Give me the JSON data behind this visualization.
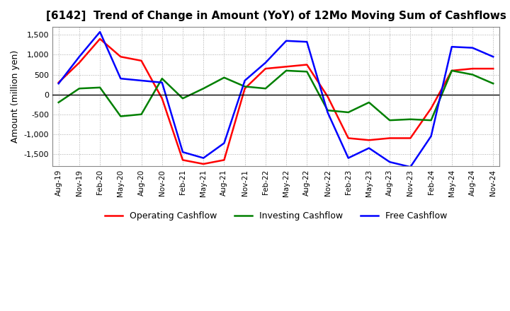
{
  "title": "[6142]  Trend of Change in Amount (YoY) of 12Mo Moving Sum of Cashflows",
  "ylabel": "Amount (million yen)",
  "background_color": "#ffffff",
  "plot_bg_color": "#ffffff",
  "grid_color": "#aaaaaa",
  "ylim": [
    -1800,
    1700
  ],
  "yticks": [
    -1500,
    -1000,
    -500,
    0,
    500,
    1000,
    1500
  ],
  "x_labels": [
    "Aug-19",
    "Nov-19",
    "Feb-20",
    "May-20",
    "Aug-20",
    "Nov-20",
    "Feb-21",
    "May-21",
    "Aug-21",
    "Nov-21",
    "Feb-22",
    "May-22",
    "Aug-22",
    "Nov-22",
    "Feb-23",
    "May-23",
    "Aug-23",
    "Nov-23",
    "Feb-24",
    "May-24",
    "Aug-24",
    "Nov-24"
  ],
  "operating": [
    300,
    800,
    1400,
    950,
    850,
    -100,
    -1650,
    -1750,
    -1650,
    150,
    650,
    700,
    750,
    -50,
    -1100,
    -1150,
    -1100,
    -1100,
    -350,
    600,
    650,
    650
  ],
  "investing": [
    -200,
    150,
    175,
    -550,
    -500,
    400,
    -100,
    150,
    425,
    200,
    150,
    600,
    575,
    -400,
    -450,
    -200,
    -650,
    -625,
    -650,
    600,
    500,
    275
  ],
  "free": [
    275,
    950,
    1575,
    400,
    350,
    300,
    -1450,
    -1600,
    -1225,
    350,
    800,
    1350,
    1325,
    -450,
    -1600,
    -1350,
    -1700,
    -1825,
    -1050,
    1200,
    1175,
    950
  ],
  "operating_color": "#ff0000",
  "investing_color": "#008000",
  "free_color": "#0000ff",
  "line_width": 1.8
}
